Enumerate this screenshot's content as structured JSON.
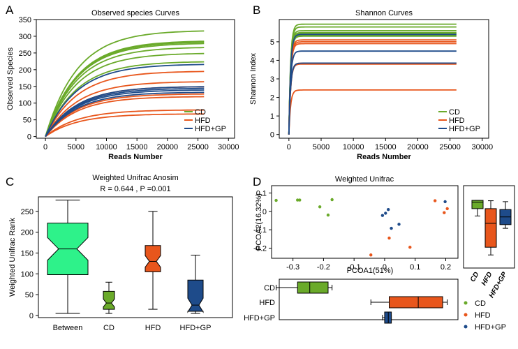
{
  "colors": {
    "CD": "#6aaa2a",
    "HFD": "#e8561c",
    "HFD+GP": "#1e4b8a",
    "between": "#2ef28a"
  },
  "legend": {
    "items": [
      "CD",
      "HFD",
      "HFD+GP"
    ]
  },
  "chart_data": [
    {
      "panel": "A",
      "type": "line",
      "title": "Observed species Curves",
      "xlabel": "Reads Number",
      "ylabel": "Observed Species",
      "xlim": [
        -1500,
        31000
      ],
      "ylim": [
        -5,
        350
      ],
      "xticks": [
        0,
        5000,
        10000,
        15000,
        20000,
        25000,
        30000
      ],
      "yticks": [
        0,
        50,
        100,
        150,
        200,
        250,
        300,
        350
      ],
      "x_end": 26000,
      "series": [
        {
          "name": "CD",
          "values": [
            318,
            287,
            284,
            280,
            268,
            250,
            225
          ]
        },
        {
          "name": "HFD",
          "values": [
            196,
            165,
            150,
            128,
            120,
            80,
            68
          ]
        },
        {
          "name": "HFD+GP",
          "values": [
            217,
            150,
            145,
            140,
            133
          ]
        }
      ]
    },
    {
      "panel": "B",
      "type": "line",
      "title": "Shannon Curves",
      "xlabel": "Reads Number",
      "ylabel": "Shannon Index",
      "xlim": [
        -1500,
        31000
      ],
      "ylim": [
        -0.2,
        6.2
      ],
      "xticks": [
        0,
        5000,
        10000,
        15000,
        20000,
        25000,
        30000
      ],
      "yticks": [
        0,
        1,
        2,
        3,
        4,
        5
      ],
      "x_end": 26000,
      "series": [
        {
          "name": "CD",
          "values": [
            5.95,
            5.8,
            5.6,
            5.5,
            5.45,
            5.35,
            5.3
          ]
        },
        {
          "name": "HFD",
          "values": [
            5.1,
            5.0,
            4.9,
            3.85,
            3.8,
            2.4
          ]
        },
        {
          "name": "HFD+GP",
          "values": [
            5.4,
            4.5,
            3.85
          ]
        }
      ]
    },
    {
      "panel": "C",
      "type": "box",
      "title": "Weighted Unifrac Anosim",
      "subtitle": "R =  0.644 ,  P =0.001",
      "ylabel": "Weighted Unifrac Rank",
      "ylim": [
        -5,
        285
      ],
      "yticks": [
        0,
        50,
        100,
        150,
        200,
        250
      ],
      "categories": [
        "Between",
        "CD",
        "HFD",
        "HFD+GP"
      ],
      "boxes": [
        {
          "name": "Between",
          "min": 5,
          "q1": 98,
          "median": 160,
          "q3": 222,
          "max": 277
        },
        {
          "name": "CD",
          "min": 5,
          "q1": 15,
          "median": 30,
          "q3": 58,
          "max": 80
        },
        {
          "name": "HFD",
          "min": 15,
          "q1": 105,
          "median": 130,
          "q3": 168,
          "max": 250
        },
        {
          "name": "HFD+GP",
          "min": 5,
          "q1": 10,
          "median": 25,
          "q3": 85,
          "max": 145
        }
      ]
    },
    {
      "panel": "D",
      "type": "scatter",
      "title": "Weighted Unifrac",
      "xlabel": "PCOA1(51%)",
      "ylabel": "PCOA2(16.32%)",
      "xlim": [
        -0.37,
        0.24
      ],
      "ylim": [
        -0.255,
        0.14
      ],
      "xticks": [
        -0.3,
        -0.2,
        -0.1,
        0,
        0.1,
        0.2
      ],
      "yticks": [
        0.1,
        0,
        -0.1,
        -0.2
      ],
      "series": [
        {
          "name": "CD",
          "points": [
            [
              -0.355,
              0.06
            ],
            [
              -0.285,
              0.062
            ],
            [
              -0.278,
              0.062
            ],
            [
              -0.172,
              0.064
            ],
            [
              -0.212,
              0.025
            ],
            [
              -0.185,
              -0.02
            ]
          ]
        },
        {
          "name": "HFD",
          "points": [
            [
              0.165,
              0.058
            ],
            [
              0.205,
              0.015
            ],
            [
              0.195,
              -0.007
            ],
            [
              0.015,
              -0.145
            ],
            [
              0.083,
              -0.195
            ],
            [
              -0.045,
              -0.237
            ]
          ]
        },
        {
          "name": "HFD+GP",
          "points": [
            [
              0.198,
              0.053
            ],
            [
              0.012,
              0.01
            ],
            [
              0.003,
              -0.01
            ],
            [
              -0.007,
              -0.022
            ],
            [
              0.047,
              -0.07
            ],
            [
              0.022,
              -0.092
            ]
          ]
        }
      ]
    },
    {
      "panel": "D-right",
      "type": "box",
      "axis": "PCOA2",
      "ylim": [
        -0.255,
        0.14
      ],
      "categories": [
        "CD",
        "HFD",
        "HFD+GP"
      ],
      "boxes": [
        {
          "name": "CD",
          "min": -0.025,
          "q1": 0.015,
          "median": 0.05,
          "q3": 0.06,
          "max": 0.06
        },
        {
          "name": "HFD",
          "min": -0.237,
          "q1": -0.195,
          "median": -0.065,
          "q3": 0.015,
          "max": 0.058
        },
        {
          "name": "HFD+GP",
          "min": -0.092,
          "q1": -0.072,
          "median": -0.03,
          "q3": 0.01,
          "max": 0.053
        }
      ]
    },
    {
      "panel": "D-bottom",
      "type": "box",
      "axis": "PCOA1",
      "xlim": [
        -0.37,
        0.24
      ],
      "categories": [
        "CD",
        "HFD",
        "HFD+GP"
      ],
      "boxes": [
        {
          "name": "CD",
          "min": -0.355,
          "q1": -0.285,
          "median": -0.245,
          "q3": -0.185,
          "max": -0.172
        },
        {
          "name": "HFD",
          "min": -0.045,
          "q1": 0.015,
          "median": 0.11,
          "q3": 0.19,
          "max": 0.205
        },
        {
          "name": "HFD+GP",
          "min": -0.007,
          "q1": 0.0,
          "median": 0.012,
          "q3": 0.022,
          "max": 0.022
        }
      ]
    }
  ]
}
